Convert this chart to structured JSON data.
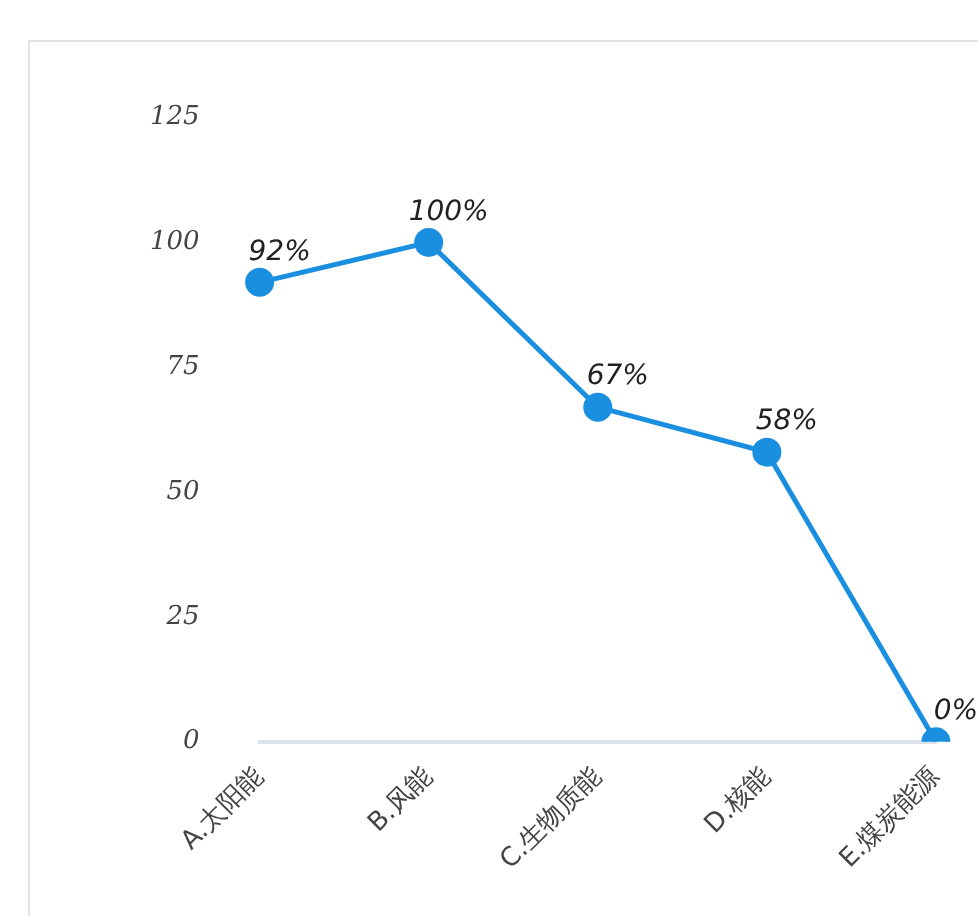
{
  "chart_data": {
    "type": "line",
    "categories": [
      "A.太阳能",
      "B.风能",
      "C.生物质能",
      "D.核能",
      "E.煤炭能源"
    ],
    "values": [
      92,
      100,
      67,
      58,
      0
    ],
    "value_labels": [
      "92%",
      "100%",
      "67%",
      "58%",
      "0%"
    ],
    "color": "#1a8fe0",
    "ylim": [
      0,
      125
    ],
    "yticks": [
      0,
      25,
      50,
      75,
      100,
      125
    ],
    "grid": false,
    "legend": false,
    "marker": "circle",
    "line_style": "solid"
  }
}
